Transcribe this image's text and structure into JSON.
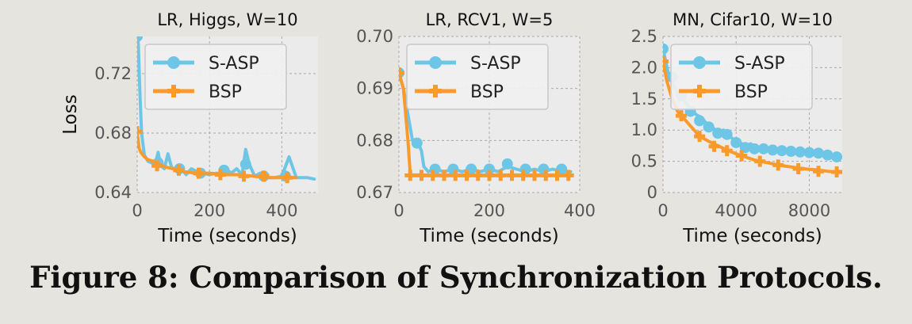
{
  "caption": "Figure 8: Comparison of Synchronization Protocols.",
  "colors": {
    "s_asp": "#6ec6e6",
    "bsp": "#f99a2b",
    "plot_bg": "#ebebeb",
    "grid": "#a9a9a9"
  },
  "chart_data": [
    {
      "type": "line",
      "title": "LR, Higgs, W=10",
      "xlabel": "Time (seconds)",
      "ylabel": "Loss",
      "xlim": [
        0,
        500
      ],
      "ylim": [
        0.64,
        0.745
      ],
      "xticks": [
        0,
        200,
        400
      ],
      "xtick_labels": [
        "0",
        "200",
        "400"
      ],
      "yticks": [
        0.64,
        0.68,
        0.72
      ],
      "ytick_labels": [
        "0.64",
        "0.68",
        "0.72"
      ],
      "grid": true,
      "legend": "upper-center",
      "series": [
        {
          "name": "S-ASP",
          "marker": "circle",
          "x": [
            0,
            3,
            7,
            12,
            20,
            30,
            40,
            50,
            58,
            65,
            75,
            85,
            95,
            110,
            120,
            135,
            150,
            165,
            180,
            200,
            220,
            240,
            250,
            260,
            275,
            290,
            300,
            310,
            325,
            340,
            350,
            365,
            380,
            400,
            420,
            440,
            470,
            490
          ],
          "y": [
            0.745,
            0.74,
            0.71,
            0.68,
            0.665,
            0.661,
            0.66,
            0.659,
            0.667,
            0.658,
            0.656,
            0.666,
            0.657,
            0.654,
            0.657,
            0.652,
            0.656,
            0.654,
            0.653,
            0.652,
            0.653,
            0.652,
            0.655,
            0.653,
            0.656,
            0.652,
            0.669,
            0.659,
            0.651,
            0.653,
            0.651,
            0.65,
            0.65,
            0.651,
            0.664,
            0.65,
            0.65,
            0.649
          ],
          "markers_x": [
            0,
            58,
            117,
            175,
            240,
            300,
            350,
            410
          ],
          "markers_y": [
            0.745,
            0.66,
            0.656,
            0.653,
            0.655,
            0.659,
            0.651,
            0.651
          ]
        },
        {
          "name": "BSP",
          "marker": "plus",
          "x": [
            0,
            5,
            10,
            20,
            30,
            45,
            60,
            80,
            100,
            130,
            160,
            200,
            240,
            280,
            320,
            360,
            400,
            440
          ],
          "y": [
            0.681,
            0.67,
            0.667,
            0.664,
            0.662,
            0.661,
            0.659,
            0.657,
            0.656,
            0.654,
            0.653,
            0.653,
            0.652,
            0.652,
            0.651,
            0.65,
            0.65,
            0.65
          ],
          "markers_x": [
            0,
            55,
            115,
            170,
            230,
            295,
            350,
            415
          ],
          "markers_y": [
            0.681,
            0.658,
            0.655,
            0.653,
            0.652,
            0.651,
            0.651,
            0.65
          ]
        }
      ]
    },
    {
      "type": "line",
      "title": "LR, RCV1, W=5",
      "xlabel": "Time (seconds)",
      "ylabel": "",
      "xlim": [
        0,
        400
      ],
      "ylim": [
        0.67,
        0.7
      ],
      "xticks": [
        0,
        200,
        400
      ],
      "xtick_labels": [
        "0",
        "200",
        "400"
      ],
      "yticks": [
        0.67,
        0.68,
        0.69,
        0.7
      ],
      "ytick_labels": [
        "0.67",
        "0.68",
        "0.69",
        "0.70"
      ],
      "grid": true,
      "legend": "upper-center",
      "series": [
        {
          "name": "S-ASP",
          "marker": "circle",
          "x": [
            0,
            10,
            20,
            30,
            40,
            50,
            55,
            65,
            80,
            100,
            120,
            140,
            160,
            180,
            200,
            220,
            240,
            260,
            280,
            300,
            320,
            340,
            360,
            380
          ],
          "y": [
            0.693,
            0.69,
            0.685,
            0.68,
            0.68,
            0.678,
            0.675,
            0.674,
            0.6745,
            0.674,
            0.6745,
            0.674,
            0.6745,
            0.674,
            0.6745,
            0.674,
            0.675,
            0.6745,
            0.674,
            0.6745,
            0.674,
            0.6745,
            0.674,
            0.674
          ],
          "markers_x": [
            0,
            40,
            80,
            120,
            160,
            200,
            240,
            280,
            320,
            360
          ],
          "markers_y": [
            0.693,
            0.6795,
            0.6745,
            0.6745,
            0.6745,
            0.6745,
            0.6755,
            0.6745,
            0.6745,
            0.6745
          ]
        },
        {
          "name": "BSP",
          "marker": "plus",
          "x": [
            0,
            10,
            20,
            25,
            30,
            40,
            60,
            100,
            150,
            200,
            250,
            300,
            350,
            380
          ],
          "y": [
            0.693,
            0.69,
            0.68,
            0.6735,
            0.6733,
            0.6733,
            0.6733,
            0.6733,
            0.6733,
            0.6733,
            0.6733,
            0.6733,
            0.6733,
            0.6733
          ],
          "markers_x": [
            0,
            25,
            50,
            75,
            100,
            125,
            150,
            175,
            200,
            225,
            250,
            275,
            300,
            325,
            350,
            375
          ],
          "markers_y": [
            0.693,
            0.6733,
            0.6733,
            0.6733,
            0.6733,
            0.6733,
            0.6733,
            0.6733,
            0.6733,
            0.6733,
            0.6733,
            0.6733,
            0.6733,
            0.6733,
            0.6733,
            0.6733
          ]
        }
      ]
    },
    {
      "type": "line",
      "title": "MN, Cifar10, W=10",
      "xlabel": "Time (seconds)",
      "ylabel": "",
      "xlim": [
        0,
        9800
      ],
      "ylim": [
        0,
        2.5
      ],
      "xticks": [
        0,
        4000,
        8000
      ],
      "xtick_labels": [
        "0",
        "4000",
        "8000"
      ],
      "yticks": [
        0,
        0.5,
        1.0,
        1.5,
        2.0,
        2.5
      ],
      "ytick_labels": [
        "0",
        "0.5",
        "1.0",
        "1.5",
        "2.0",
        "2.5"
      ],
      "grid": true,
      "legend": "upper-center",
      "series": [
        {
          "name": "S-ASP",
          "marker": "circle",
          "x": [
            0,
            300,
            600,
            900,
            1200,
            1500,
            1800,
            2100,
            2400,
            2700,
            3000,
            3300,
            3600,
            3900,
            4200,
            4500,
            4800,
            5100,
            5400,
            5700,
            6000,
            6300,
            6600,
            6900,
            7200,
            7500,
            7800,
            8100,
            8400,
            8700,
            9000,
            9300,
            9600,
            9800
          ],
          "y": [
            2.3,
            1.9,
            1.7,
            1.55,
            1.45,
            1.35,
            1.25,
            1.2,
            1.1,
            1.05,
            0.95,
            1.0,
            0.9,
            0.85,
            0.8,
            0.75,
            0.78,
            0.7,
            0.72,
            0.68,
            0.7,
            0.66,
            0.7,
            0.65,
            0.68,
            0.64,
            0.66,
            0.63,
            0.65,
            0.62,
            0.64,
            0.6,
            0.58,
            0.57
          ],
          "markers_x": [
            0,
            500,
            1000,
            1500,
            2000,
            2500,
            3000,
            3500,
            4000,
            4500,
            5000,
            5500,
            6000,
            6500,
            7000,
            7500,
            8000,
            8500,
            9000,
            9500
          ],
          "markers_y": [
            2.3,
            1.85,
            1.55,
            1.3,
            1.15,
            1.05,
            0.95,
            0.93,
            0.8,
            0.72,
            0.7,
            0.7,
            0.68,
            0.67,
            0.66,
            0.65,
            0.64,
            0.63,
            0.6,
            0.57
          ]
        },
        {
          "name": "BSP",
          "marker": "plus",
          "x": [
            0,
            200,
            500,
            800,
            1100,
            1400,
            1700,
            2000,
            2500,
            3000,
            3500,
            4000,
            4500,
            5000,
            5500,
            6000,
            6500,
            7000,
            7500,
            8000,
            8500,
            9000,
            9500,
            9800
          ],
          "y": [
            2.1,
            1.8,
            1.5,
            1.3,
            1.2,
            1.1,
            1.0,
            0.9,
            0.82,
            0.75,
            0.68,
            0.62,
            0.57,
            0.52,
            0.49,
            0.46,
            0.43,
            0.41,
            0.39,
            0.37,
            0.36,
            0.34,
            0.33,
            0.32
          ],
          "markers_x": [
            0,
            1000,
            2000,
            2800,
            3500,
            4300,
            5300,
            6300,
            7400,
            8500,
            9500
          ],
          "markers_y": [
            2.1,
            1.23,
            0.9,
            0.74,
            0.67,
            0.59,
            0.5,
            0.44,
            0.38,
            0.34,
            0.33
          ]
        }
      ]
    }
  ]
}
